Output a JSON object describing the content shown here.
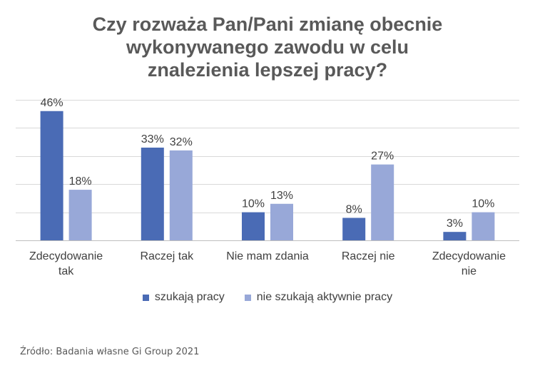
{
  "chart_data": {
    "type": "bar",
    "title_lines": [
      "Czy rozważa Pan/Pani zmianę obecnie",
      "wykonywanego zawodu w celu",
      "znalezienia lepszej pracy?"
    ],
    "categories": [
      [
        "Zdecydowanie",
        "tak"
      ],
      [
        "Raczej tak"
      ],
      [
        "Nie mam zdania"
      ],
      [
        "Raczej nie"
      ],
      [
        "Zdecydowanie",
        "nie"
      ]
    ],
    "series": [
      {
        "name": "szukają pracy",
        "color": "#4a6bb5",
        "values": [
          46,
          33,
          10,
          8,
          3
        ],
        "labels": [
          "46%",
          "33%",
          "10%",
          "8%",
          "3%"
        ]
      },
      {
        "name": "nie szukają aktywnie pracy",
        "color": "#98a8d8",
        "values": [
          18,
          32,
          13,
          27,
          10
        ],
        "labels": [
          "18%",
          "32%",
          "13%",
          "27%",
          "10%"
        ]
      }
    ],
    "ylim": [
      0,
      50
    ],
    "gridlines": [
      0,
      10,
      20,
      30,
      40,
      50
    ],
    "grid": true,
    "legend_position": "bottom"
  },
  "source": "Źródło: Badania własne Gi Group 2021"
}
